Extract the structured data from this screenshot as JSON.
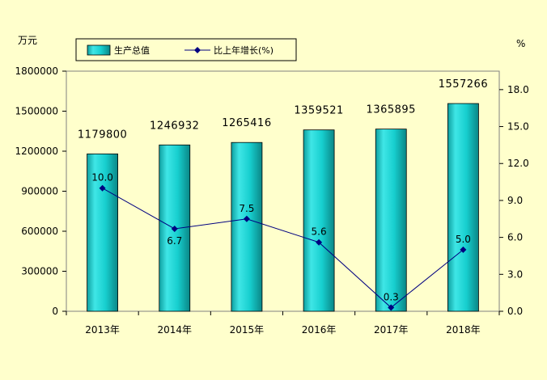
{
  "chart_data": {
    "type": "bar+line",
    "categories": [
      "2013年",
      "2014年",
      "2015年",
      "2016年",
      "2017年",
      "2018年"
    ],
    "series": [
      {
        "name": "生产总值",
        "type": "bar",
        "axis": "left",
        "values": [
          1179800,
          1246932,
          1265416,
          1359521,
          1365895,
          1557266
        ],
        "labels": [
          "1179800",
          "1246932",
          "1265416",
          "1359521",
          "1365895",
          "1557266"
        ],
        "color": "#19C8C8"
      },
      {
        "name": "比上年增长(%)",
        "type": "line",
        "axis": "right",
        "values": [
          10.0,
          6.7,
          7.5,
          5.6,
          0.3,
          5.0
        ],
        "labels": [
          "10.0",
          "6.7",
          "7.5",
          "5.6",
          "0.3",
          "5.0"
        ],
        "color": "#000080"
      }
    ],
    "y_left": {
      "unit": "万元",
      "range": [
        0,
        1800000
      ],
      "ticks": [
        "0",
        "300000",
        "600000",
        "900000",
        "1200000",
        "1500000",
        "1800000"
      ]
    },
    "y_right": {
      "unit": "%",
      "range": [
        0,
        19.5
      ],
      "ticks": [
        "0.0",
        "3.0",
        "6.0",
        "9.0",
        "12.0",
        "15.0",
        "18.0"
      ]
    },
    "grid": false,
    "legend": "top-left"
  }
}
